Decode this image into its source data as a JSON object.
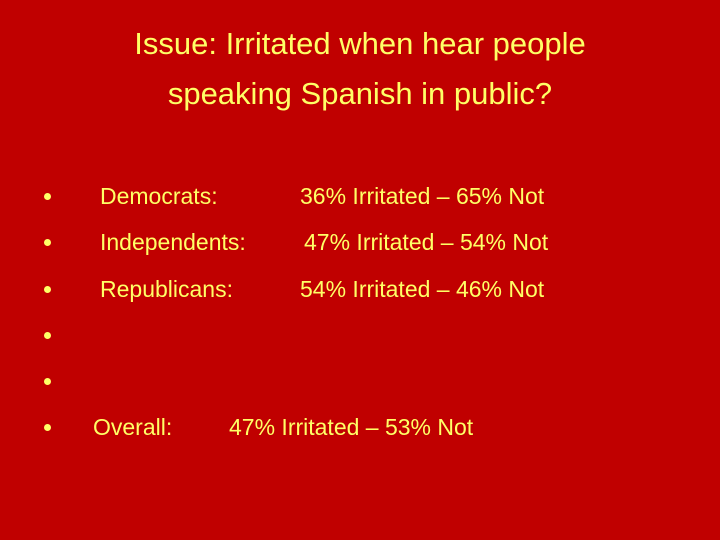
{
  "header": {
    "title_lines": [
      "Issue: Irritated when hear people",
      "speaking Spanish in public?"
    ]
  },
  "items": [
    {
      "label": "Democrats:",
      "text": "36% Irritated – 65% Not"
    },
    {
      "label": "Independents:",
      "text": "47% Irritated – 54% Not"
    },
    {
      "label": "Republicans:",
      "text": "54% Irritated – 46% Not"
    }
  ],
  "overall": {
    "label": "Overall:",
    "text": "47% Irritated – 53% Not"
  }
}
